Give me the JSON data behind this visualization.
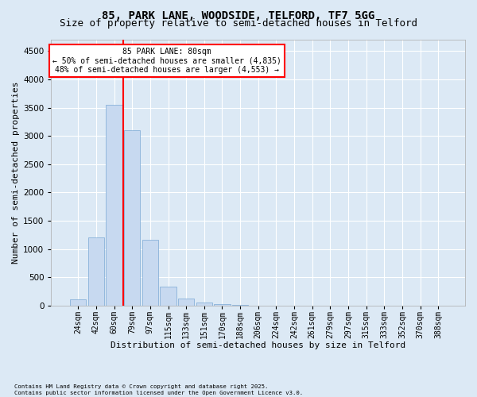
{
  "title_line1": "85, PARK LANE, WOODSIDE, TELFORD, TF7 5GG",
  "title_line2": "Size of property relative to semi-detached houses in Telford",
  "xlabel": "Distribution of semi-detached houses by size in Telford",
  "ylabel": "Number of semi-detached properties",
  "footnote": "Contains HM Land Registry data © Crown copyright and database right 2025.\nContains public sector information licensed under the Open Government Licence v3.0.",
  "bin_labels": [
    "24sqm",
    "42sqm",
    "60sqm",
    "79sqm",
    "97sqm",
    "115sqm",
    "133sqm",
    "151sqm",
    "170sqm",
    "188sqm",
    "206sqm",
    "224sqm",
    "242sqm",
    "261sqm",
    "279sqm",
    "297sqm",
    "315sqm",
    "333sqm",
    "352sqm",
    "370sqm",
    "388sqm"
  ],
  "bar_values": [
    110,
    1200,
    3550,
    3100,
    1160,
    340,
    120,
    60,
    30,
    10,
    5,
    2,
    1,
    0,
    0,
    0,
    0,
    0,
    0,
    0,
    0
  ],
  "bar_color": "#c7d9f0",
  "bar_edge_color": "#7aa8d4",
  "property_label": "85 PARK LANE: 80sqm",
  "annotation_smaller": "← 50% of semi-detached houses are smaller (4,835)",
  "annotation_larger": "48% of semi-detached houses are larger (4,553) →",
  "ylim": [
    0,
    4700
  ],
  "yticks": [
    0,
    500,
    1000,
    1500,
    2000,
    2500,
    3000,
    3500,
    4000,
    4500
  ],
  "grid_color": "#ffffff",
  "bg_color": "#dce9f5",
  "title_fontsize": 10,
  "subtitle_fontsize": 9,
  "axis_label_fontsize": 8,
  "tick_fontsize": 7
}
